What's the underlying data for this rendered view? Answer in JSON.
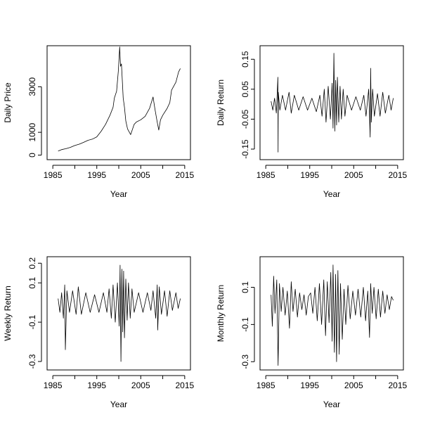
{
  "chart_data": [
    {
      "type": "line",
      "title": "",
      "xlabel": "Year",
      "ylabel": "Daily Price",
      "xlim": [
        1985,
        2015
      ],
      "ylim": [
        0,
        4600
      ],
      "x_ticks": [
        1985,
        1995,
        2005,
        2015
      ],
      "y_ticks": [
        0,
        1000,
        3000
      ],
      "series": [
        {
          "x": [
            1986.2,
            1987.0,
            1988.0,
            1989.0,
            1990.0,
            1991.0,
            1992.0,
            1993.0,
            1994.0,
            1995.0,
            1996.0,
            1997.0,
            1998.0,
            1998.7,
            1999.0,
            1999.5,
            1999.9,
            2000.2,
            2000.4,
            2000.6,
            2000.8,
            2001.0,
            2001.3,
            2001.6,
            2002.0,
            2002.7,
            2003.5,
            2004.0,
            2005.0,
            2006.0,
            2007.0,
            2007.8,
            2008.2,
            2008.7,
            2009.1,
            2009.5,
            2010.0,
            2011.0,
            2011.6,
            2012.0,
            2013.0,
            2013.6,
            2014.0
          ],
          "values": [
            180,
            240,
            280,
            340,
            420,
            480,
            560,
            650,
            700,
            800,
            1050,
            1350,
            1750,
            2100,
            2500,
            2800,
            3700,
            4750,
            3900,
            4000,
            3300,
            2500,
            2100,
            1500,
            1150,
            900,
            1350,
            1450,
            1550,
            1700,
            2050,
            2550,
            2050,
            1500,
            1100,
            1550,
            1750,
            2050,
            2300,
            2850,
            3200,
            3650,
            3800
          ]
        }
      ]
    },
    {
      "type": "line",
      "title": "",
      "xlabel": "Year",
      "ylabel": "Daily Return",
      "xlim": [
        1985,
        2015
      ],
      "ylim": [
        -0.17,
        0.18
      ],
      "x_ticks": [
        1985,
        1995,
        2005,
        2015
      ],
      "y_ticks": [
        -0.15,
        -0.05,
        0.05,
        0.15
      ],
      "series": [
        {
          "x": [
            1986.2,
            1986.6,
            1987.0,
            1987.4,
            1987.75,
            1987.8,
            1987.85,
            1988.2,
            1988.8,
            1989.5,
            1990.3,
            1990.8,
            1991.5,
            1992.5,
            1993.5,
            1994.5,
            1995.5,
            1996.5,
            1997.3,
            1997.8,
            1998.3,
            1998.7,
            1999.2,
            1999.7,
            2000.1,
            2000.3,
            2000.5,
            2000.7,
            2000.9,
            2001.1,
            2001.3,
            2001.6,
            2001.9,
            2002.2,
            2002.6,
            2003.0,
            2003.5,
            2004.5,
            2005.5,
            2006.5,
            2007.3,
            2007.8,
            2008.4,
            2008.75,
            2008.85,
            2009.0,
            2009.3,
            2009.7,
            2010.4,
            2011.0,
            2011.6,
            2012.2,
            2013.0,
            2013.5,
            2014.0
          ],
          "values": [
            0.01,
            -0.02,
            0.02,
            -0.03,
            0.09,
            -0.16,
            0.04,
            -0.02,
            0.03,
            -0.02,
            0.04,
            -0.03,
            0.03,
            -0.02,
            0.025,
            -0.02,
            0.02,
            -0.025,
            0.03,
            -0.04,
            0.05,
            -0.06,
            0.06,
            -0.05,
            0.07,
            -0.08,
            0.17,
            -0.09,
            0.08,
            -0.07,
            0.09,
            -0.06,
            0.06,
            -0.05,
            0.05,
            -0.04,
            0.03,
            -0.02,
            0.025,
            -0.02,
            0.03,
            -0.04,
            0.05,
            -0.11,
            0.12,
            -0.06,
            0.05,
            -0.04,
            0.035,
            -0.04,
            0.04,
            -0.03,
            0.03,
            -0.02,
            0.02
          ]
        }
      ]
    },
    {
      "type": "line",
      "title": "",
      "xlabel": "Year",
      "ylabel": "Weekly Return",
      "xlim": [
        1985,
        2015
      ],
      "ylim": [
        -0.32,
        0.21
      ],
      "x_ticks": [
        1985,
        1995,
        2005,
        2015
      ],
      "y_ticks": [
        -0.3,
        -0.1,
        0.1,
        0.2
      ],
      "series": [
        {
          "x": [
            1986.2,
            1986.6,
            1987.0,
            1987.4,
            1987.7,
            1987.85,
            1988.2,
            1988.8,
            1989.5,
            1990.3,
            1990.8,
            1991.5,
            1992.5,
            1993.5,
            1994.5,
            1995.5,
            1996.5,
            1997.3,
            1997.8,
            1998.3,
            1998.7,
            1999.2,
            1999.7,
            2000.1,
            2000.3,
            2000.5,
            2000.7,
            2000.9,
            2001.1,
            2001.3,
            2001.6,
            2001.9,
            2002.2,
            2002.6,
            2003.0,
            2003.5,
            2004.5,
            2005.5,
            2006.5,
            2007.3,
            2007.8,
            2008.4,
            2008.75,
            2008.85,
            2009.2,
            2009.7,
            2010.4,
            2011.0,
            2011.6,
            2012.2,
            2013.0,
            2013.5,
            2014.0
          ],
          "values": [
            0.02,
            -0.05,
            0.05,
            -0.08,
            0.09,
            -0.24,
            0.06,
            -0.05,
            0.06,
            -0.06,
            0.08,
            -0.06,
            0.05,
            -0.05,
            0.04,
            -0.05,
            0.05,
            -0.05,
            0.07,
            -0.08,
            0.09,
            -0.1,
            0.1,
            -0.12,
            0.19,
            -0.3,
            0.17,
            -0.15,
            0.16,
            -0.18,
            0.12,
            -0.09,
            0.1,
            -0.08,
            0.07,
            -0.05,
            0.05,
            -0.05,
            0.05,
            -0.04,
            0.06,
            -0.08,
            0.09,
            -0.14,
            0.08,
            -0.06,
            0.06,
            -0.07,
            0.06,
            -0.04,
            0.05,
            -0.03,
            0.02
          ]
        }
      ]
    },
    {
      "type": "line",
      "title": "",
      "xlabel": "Year",
      "ylabel": "Monthly Return",
      "xlim": [
        1985,
        2015
      ],
      "ylim": [
        -0.32,
        0.24
      ],
      "x_ticks": [
        1985,
        1995,
        2005,
        2015
      ],
      "y_ticks": [
        -0.3,
        -0.1,
        0.1
      ],
      "series": [
        {
          "x": [
            1986.2,
            1986.5,
            1986.8,
            1987.1,
            1987.5,
            1987.8,
            1988.1,
            1988.5,
            1988.9,
            1989.4,
            1989.9,
            1990.4,
            1990.8,
            1991.2,
            1991.7,
            1992.2,
            1992.7,
            1993.2,
            1993.7,
            1994.2,
            1994.7,
            1995.2,
            1995.7,
            1996.2,
            1996.7,
            1997.2,
            1997.7,
            1998.2,
            1998.6,
            1999.0,
            1999.4,
            1999.8,
            2000.1,
            2000.3,
            2000.6,
            2000.9,
            2001.1,
            2001.4,
            2001.7,
            2002.0,
            2002.4,
            2002.8,
            2003.2,
            2003.7,
            2004.2,
            2004.8,
            2005.4,
            2006.0,
            2006.6,
            2007.2,
            2007.7,
            2008.2,
            2008.6,
            2008.85,
            2009.2,
            2009.6,
            2010.1,
            2010.6,
            2011.1,
            2011.6,
            2012.1,
            2012.6,
            2013.1,
            2013.6,
            2014.0
          ],
          "values": [
            0.06,
            -0.11,
            0.16,
            -0.04,
            0.14,
            -0.32,
            0.12,
            -0.03,
            0.1,
            -0.05,
            0.08,
            -0.12,
            0.13,
            -0.03,
            0.09,
            -0.06,
            0.07,
            -0.02,
            0.06,
            -0.05,
            0.05,
            0.07,
            -0.04,
            0.1,
            -0.08,
            0.12,
            -0.1,
            0.14,
            -0.16,
            0.13,
            -0.09,
            0.18,
            -0.19,
            0.22,
            -0.25,
            0.17,
            -0.3,
            0.19,
            -0.26,
            0.12,
            -0.18,
            0.09,
            -0.1,
            0.11,
            -0.07,
            0.08,
            -0.05,
            0.09,
            -0.06,
            0.1,
            -0.08,
            0.08,
            -0.17,
            0.12,
            -0.04,
            0.1,
            -0.07,
            0.09,
            -0.06,
            0.08,
            -0.04,
            0.06,
            -0.02,
            0.05,
            0.03
          ]
        }
      ]
    }
  ]
}
